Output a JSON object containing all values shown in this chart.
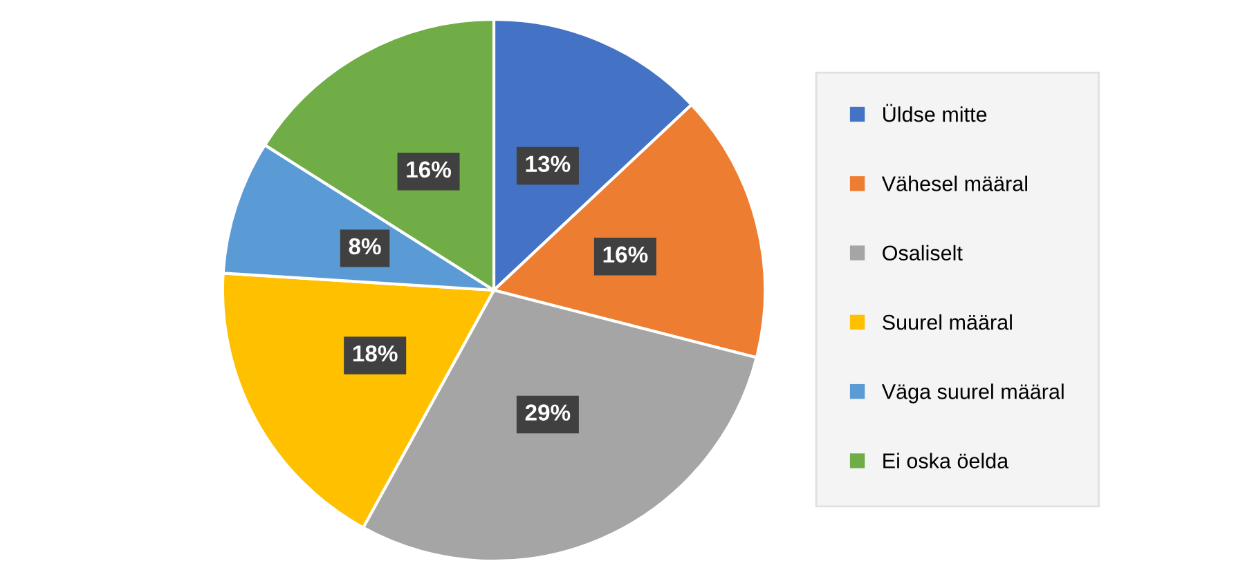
{
  "chart_data": {
    "type": "pie",
    "categories": [
      "Üldse mitte",
      "Vähesel määral",
      "Osaliselt",
      "Suurel määral",
      "Väga suurel määral",
      "Ei oska öelda"
    ],
    "values": [
      13,
      16,
      29,
      18,
      8,
      16
    ],
    "colors": [
      "#4472c4",
      "#ed7d31",
      "#a5a5a5",
      "#ffc000",
      "#5b9bd5",
      "#70ad47"
    ],
    "value_labels": [
      "13%",
      "16%",
      "29%",
      "18%",
      "8%",
      "16%"
    ],
    "legend": "right"
  }
}
